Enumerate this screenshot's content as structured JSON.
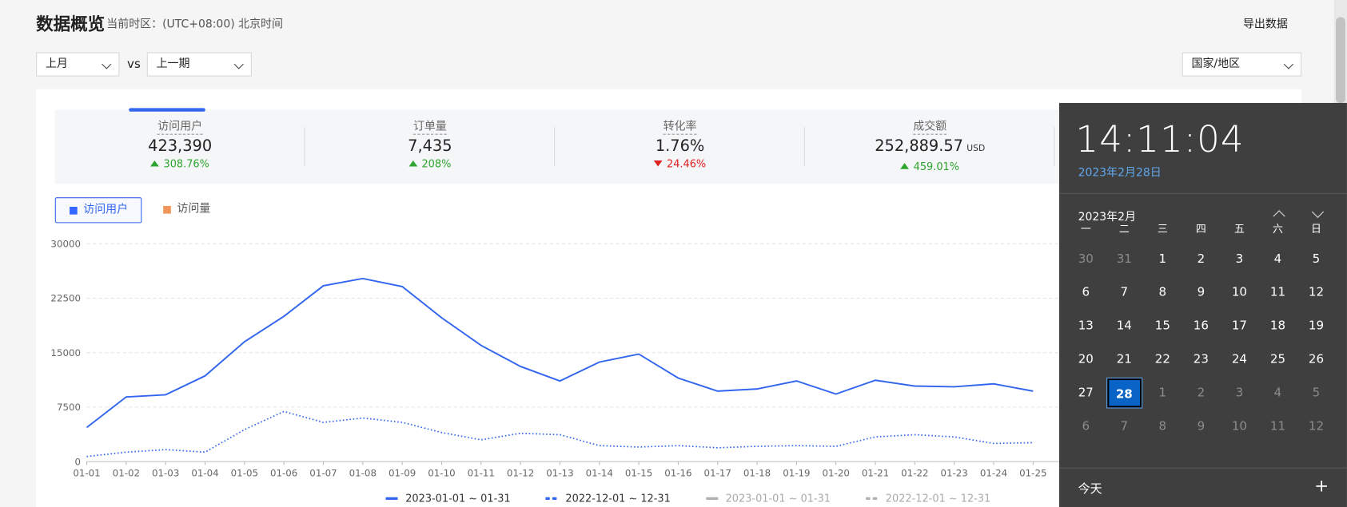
{
  "header": {
    "title": "数据概览",
    "timezone": "当前时区：(UTC+08:00) 北京时间",
    "export": "导出数据"
  },
  "filters": {
    "period": "上月",
    "vs": "vs",
    "compare": "上一期",
    "region": "国家/地区"
  },
  "kpis": [
    {
      "label": "访问用户",
      "value": "423,390",
      "change": "308.76%",
      "direction": "up"
    },
    {
      "label": "订单量",
      "value": "7,435",
      "change": "208%",
      "direction": "up"
    },
    {
      "label": "转化率",
      "value": "1.76%",
      "change": "24.46%",
      "direction": "down"
    },
    {
      "label": "成交额",
      "value": "252,889.57",
      "unit": "USD",
      "change": "459.01%",
      "direction": "up"
    }
  ],
  "tabs": [
    {
      "label": "访问用户",
      "color": "#3366ff",
      "active": true
    },
    {
      "label": "访问量",
      "color": "#f0965a",
      "active": false
    }
  ],
  "chart_data": {
    "type": "line",
    "categories": [
      "01-01",
      "01-02",
      "01-03",
      "01-04",
      "01-05",
      "01-06",
      "01-07",
      "01-08",
      "01-09",
      "01-10",
      "01-11",
      "01-12",
      "01-13",
      "01-14",
      "01-15",
      "01-16",
      "01-17",
      "01-18",
      "01-19",
      "01-20",
      "01-21",
      "01-22",
      "01-23",
      "01-24",
      "01-25"
    ],
    "series": [
      {
        "name": "2023-01-01 ~ 01-31",
        "color": "#3366ee",
        "style": "solid",
        "values": [
          4700,
          8900,
          9200,
          11800,
          16500,
          20000,
          24200,
          25200,
          24100,
          19800,
          16000,
          13100,
          11100,
          13700,
          14800,
          11500,
          9700,
          10000,
          11100,
          9300,
          11200,
          10400,
          10300,
          10700,
          9700
        ]
      },
      {
        "name": "2022-12-01 ~ 12-31",
        "color": "#3366ee",
        "style": "dotted",
        "values": [
          700,
          1300,
          1650,
          1300,
          4400,
          6900,
          5400,
          6000,
          5400,
          4000,
          3000,
          3900,
          3700,
          2200,
          2000,
          2200,
          1900,
          2100,
          2200,
          2100,
          3400,
          3700,
          3400,
          2500,
          2600
        ]
      }
    ],
    "legend_inactive": [
      {
        "name": "2023-01-01 ~ 01-31",
        "color": "#b0b0b0",
        "style": "solid"
      },
      {
        "name": "2022-12-01 ~ 12-31",
        "color": "#b0b0b0",
        "style": "dashed"
      }
    ],
    "ylim": [
      0,
      30000
    ],
    "yticks": [
      0,
      7500,
      15000,
      22500,
      30000
    ],
    "grid": true
  },
  "calendar": {
    "time": "14:11:04",
    "date": "2023年2月28日",
    "month": "2023年2月",
    "weekdays": [
      "一",
      "二",
      "三",
      "四",
      "五",
      "六",
      "日"
    ],
    "weeks": [
      [
        {
          "day": 30,
          "muted": true
        },
        {
          "day": 31,
          "muted": true
        },
        {
          "day": 1
        },
        {
          "day": 2
        },
        {
          "day": 3
        },
        {
          "day": 4
        },
        {
          "day": 5
        }
      ],
      [
        {
          "day": 6
        },
        {
          "day": 7
        },
        {
          "day": 8
        },
        {
          "day": 9
        },
        {
          "day": 10
        },
        {
          "day": 11
        },
        {
          "day": 12
        }
      ],
      [
        {
          "day": 13
        },
        {
          "day": 14
        },
        {
          "day": 15
        },
        {
          "day": 16
        },
        {
          "day": 17
        },
        {
          "day": 18
        },
        {
          "day": 19
        }
      ],
      [
        {
          "day": 20
        },
        {
          "day": 21
        },
        {
          "day": 22
        },
        {
          "day": 23
        },
        {
          "day": 24
        },
        {
          "day": 25
        },
        {
          "day": 26
        }
      ],
      [
        {
          "day": 27
        },
        {
          "day": 28,
          "selected": true
        },
        {
          "day": 1,
          "muted": true
        },
        {
          "day": 2,
          "muted": true
        },
        {
          "day": 3,
          "muted": true
        },
        {
          "day": 4,
          "muted": true
        },
        {
          "day": 5,
          "muted": true
        }
      ],
      [
        {
          "day": 6,
          "muted": true
        },
        {
          "day": 7,
          "muted": true
        },
        {
          "day": 8,
          "muted": true
        },
        {
          "day": 9,
          "muted": true
        },
        {
          "day": 10,
          "muted": true
        },
        {
          "day": 11,
          "muted": true
        },
        {
          "day": 12,
          "muted": true
        }
      ]
    ],
    "today": "今天",
    "add": "+"
  }
}
